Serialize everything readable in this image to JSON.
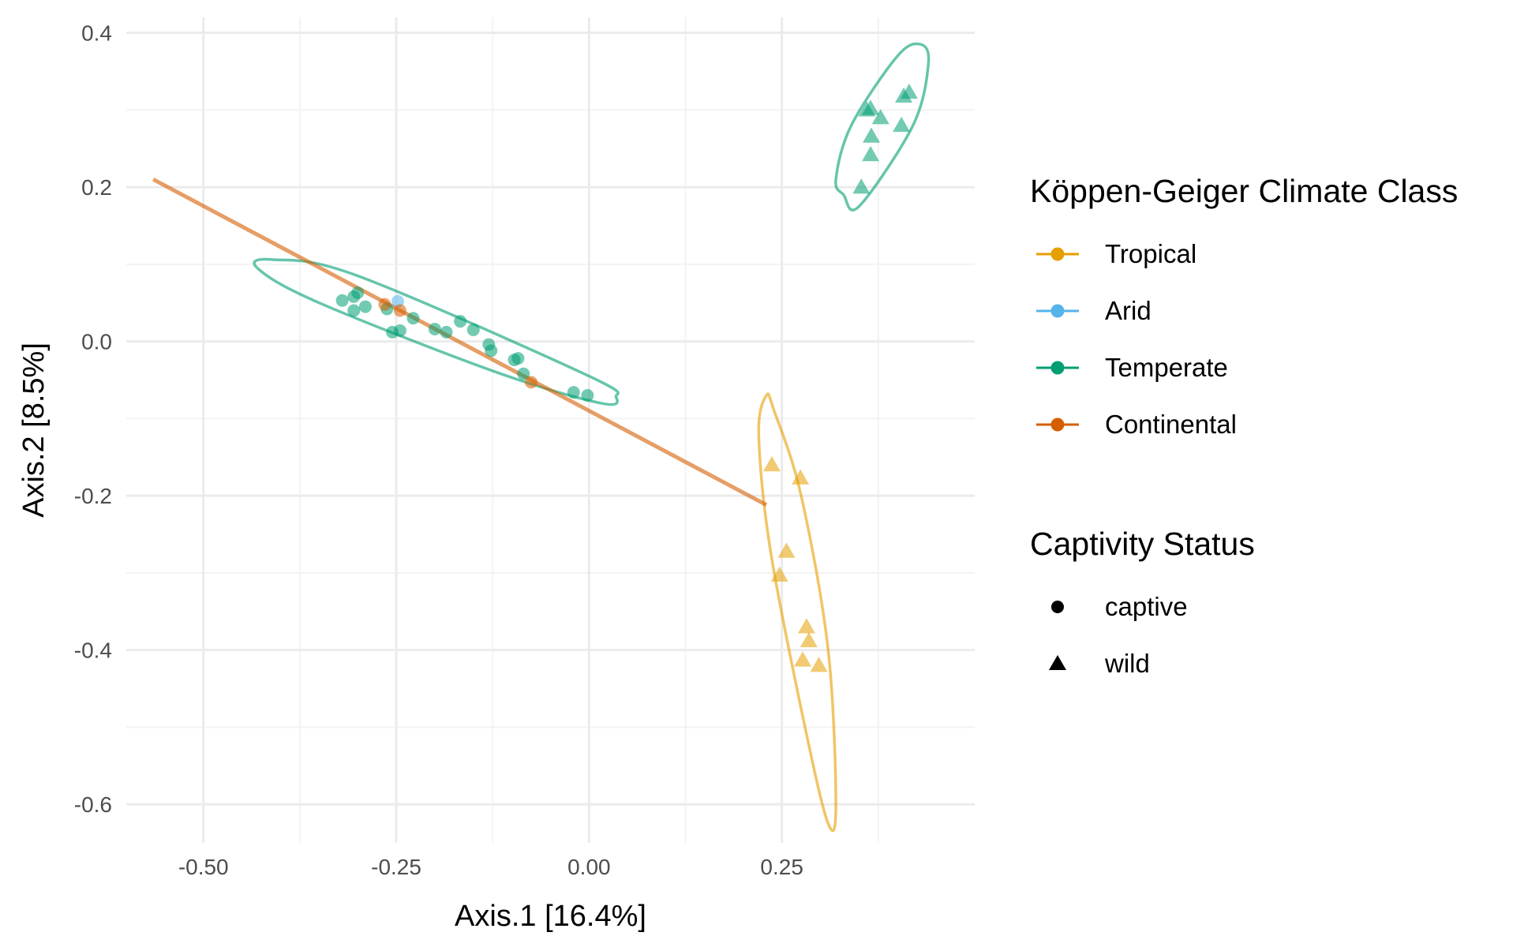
{
  "chart_data": {
    "type": "scatter",
    "xlabel": "Axis.1   [16.4%]",
    "ylabel": "Axis.2   [8.5%]",
    "xlim": [
      -0.6,
      0.5
    ],
    "ylim": [
      -0.65,
      0.42
    ],
    "x_ticks": [
      -0.5,
      -0.25,
      0.0,
      0.25
    ],
    "x_tick_labels": [
      "-0.50",
      "-0.25",
      "0.00",
      "0.25"
    ],
    "y_ticks": [
      0.4,
      0.2,
      0.0,
      -0.2,
      -0.4,
      -0.6
    ],
    "y_tick_labels": [
      "0.4",
      "0.2",
      "0.0",
      "-0.2",
      "-0.4",
      "-0.6"
    ],
    "grid": true,
    "colors": {
      "Tropical": "#E69F00",
      "Arid": "#56B4E9",
      "Temperate": "#009E73",
      "Continental": "#D55E00"
    },
    "legend": {
      "placement": "right",
      "color_title": "Köppen-Geiger Climate Class",
      "color_entries": [
        "Tropical",
        "Arid",
        "Temperate",
        "Continental"
      ],
      "shape_title": "Captivity Status",
      "shape_entries": [
        {
          "label": "captive",
          "shape": "circle"
        },
        {
          "label": "wild",
          "shape": "triangle"
        }
      ]
    },
    "points": [
      {
        "x": -0.32,
        "y": 0.053,
        "climate": "Temperate",
        "status": "captive"
      },
      {
        "x": -0.305,
        "y": 0.058,
        "climate": "Temperate",
        "status": "captive"
      },
      {
        "x": -0.3,
        "y": 0.063,
        "climate": "Temperate",
        "status": "captive"
      },
      {
        "x": -0.305,
        "y": 0.04,
        "climate": "Temperate",
        "status": "captive"
      },
      {
        "x": -0.29,
        "y": 0.045,
        "climate": "Temperate",
        "status": "captive"
      },
      {
        "x": -0.262,
        "y": 0.042,
        "climate": "Temperate",
        "status": "captive"
      },
      {
        "x": -0.255,
        "y": 0.012,
        "climate": "Temperate",
        "status": "captive"
      },
      {
        "x": -0.245,
        "y": 0.014,
        "climate": "Temperate",
        "status": "captive"
      },
      {
        "x": -0.228,
        "y": 0.03,
        "climate": "Temperate",
        "status": "captive"
      },
      {
        "x": -0.2,
        "y": 0.016,
        "climate": "Temperate",
        "status": "captive"
      },
      {
        "x": -0.185,
        "y": 0.012,
        "climate": "Temperate",
        "status": "captive"
      },
      {
        "x": -0.167,
        "y": 0.026,
        "climate": "Temperate",
        "status": "captive"
      },
      {
        "x": -0.15,
        "y": 0.015,
        "climate": "Temperate",
        "status": "captive"
      },
      {
        "x": -0.13,
        "y": -0.004,
        "climate": "Temperate",
        "status": "captive"
      },
      {
        "x": -0.127,
        "y": -0.012,
        "climate": "Temperate",
        "status": "captive"
      },
      {
        "x": -0.097,
        "y": -0.024,
        "climate": "Temperate",
        "status": "captive"
      },
      {
        "x": -0.092,
        "y": -0.022,
        "climate": "Temperate",
        "status": "captive"
      },
      {
        "x": -0.085,
        "y": -0.042,
        "climate": "Temperate",
        "status": "captive"
      },
      {
        "x": -0.02,
        "y": -0.066,
        "climate": "Temperate",
        "status": "captive"
      },
      {
        "x": -0.002,
        "y": -0.07,
        "climate": "Temperate",
        "status": "captive"
      },
      {
        "x": -0.248,
        "y": 0.052,
        "climate": "Arid",
        "status": "captive"
      },
      {
        "x": -0.265,
        "y": 0.048,
        "climate": "Continental",
        "status": "captive"
      },
      {
        "x": -0.245,
        "y": 0.04,
        "climate": "Continental",
        "status": "captive"
      },
      {
        "x": -0.075,
        "y": -0.053,
        "climate": "Continental",
        "status": "captive"
      },
      {
        "x": 0.365,
        "y": 0.302,
        "climate": "Temperate",
        "status": "wild"
      },
      {
        "x": 0.36,
        "y": 0.3,
        "climate": "Temperate",
        "status": "wild"
      },
      {
        "x": 0.378,
        "y": 0.29,
        "climate": "Temperate",
        "status": "wild"
      },
      {
        "x": 0.408,
        "y": 0.318,
        "climate": "Temperate",
        "status": "wild"
      },
      {
        "x": 0.415,
        "y": 0.323,
        "climate": "Temperate",
        "status": "wild"
      },
      {
        "x": 0.405,
        "y": 0.28,
        "climate": "Temperate",
        "status": "wild"
      },
      {
        "x": 0.366,
        "y": 0.266,
        "climate": "Temperate",
        "status": "wild"
      },
      {
        "x": 0.365,
        "y": 0.242,
        "climate": "Temperate",
        "status": "wild"
      },
      {
        "x": 0.353,
        "y": 0.2,
        "climate": "Temperate",
        "status": "wild"
      },
      {
        "x": 0.237,
        "y": -0.16,
        "climate": "Tropical",
        "status": "wild"
      },
      {
        "x": 0.274,
        "y": -0.177,
        "climate": "Tropical",
        "status": "wild"
      },
      {
        "x": 0.256,
        "y": -0.272,
        "climate": "Tropical",
        "status": "wild"
      },
      {
        "x": 0.247,
        "y": -0.303,
        "climate": "Tropical",
        "status": "wild"
      },
      {
        "x": 0.282,
        "y": -0.37,
        "climate": "Tropical",
        "status": "wild"
      },
      {
        "x": 0.285,
        "y": -0.388,
        "climate": "Tropical",
        "status": "wild"
      },
      {
        "x": 0.277,
        "y": -0.413,
        "climate": "Tropical",
        "status": "wild"
      },
      {
        "x": 0.298,
        "y": -0.42,
        "climate": "Tropical",
        "status": "wild"
      }
    ],
    "ellipses": [
      {
        "climate": "Temperate",
        "points": [
          [
            -0.43,
            0.095
          ],
          [
            -0.41,
            0.106
          ],
          [
            -0.3,
            0.085
          ],
          [
            0.0,
            -0.045
          ],
          [
            0.035,
            -0.072
          ],
          [
            0.015,
            -0.08
          ],
          [
            -0.12,
            -0.04
          ],
          [
            -0.35,
            0.05
          ],
          [
            -0.43,
            0.095
          ]
        ]
      },
      {
        "climate": "Temperate",
        "points": [
          [
            0.43,
            0.385
          ],
          [
            0.44,
            0.36
          ],
          [
            0.42,
            0.28
          ],
          [
            0.35,
            0.175
          ],
          [
            0.33,
            0.19
          ],
          [
            0.32,
            0.21
          ],
          [
            0.34,
            0.28
          ],
          [
            0.4,
            0.37
          ],
          [
            0.43,
            0.385
          ]
        ]
      },
      {
        "climate": "Tropical",
        "points": [
          [
            0.23,
            -0.07
          ],
          [
            0.24,
            -0.09
          ],
          [
            0.275,
            -0.2
          ],
          [
            0.31,
            -0.4
          ],
          [
            0.32,
            -0.6
          ],
          [
            0.31,
            -0.625
          ],
          [
            0.28,
            -0.5
          ],
          [
            0.235,
            -0.27
          ],
          [
            0.22,
            -0.12
          ],
          [
            0.23,
            -0.07
          ]
        ]
      }
    ],
    "trend_line": {
      "climate": "Continental",
      "x": [
        -0.565,
        0.23
      ],
      "y": [
        0.21,
        -0.212
      ]
    }
  }
}
